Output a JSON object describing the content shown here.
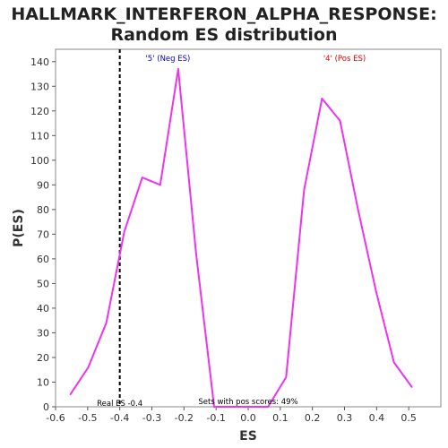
{
  "chart_data": {
    "type": "line",
    "title_lines": [
      "HALLMARK_INTERFERON_ALPHA_RESPONSE:",
      "Random ES distribution"
    ],
    "xlabel": "ES",
    "ylabel": "P(ES)",
    "xlim": [
      -0.6,
      0.6
    ],
    "ylim": [
      0,
      145
    ],
    "xticks": [
      "-0.6",
      "-0.5",
      "-0.4",
      "-0.3",
      "-0.2",
      "-0.1",
      "0.0",
      "0.1",
      "0.2",
      "0.3",
      "0.4",
      "0.5"
    ],
    "xtick_values": [
      -0.6,
      -0.5,
      -0.4,
      -0.3,
      -0.2,
      -0.1,
      0.0,
      0.1,
      0.2,
      0.3,
      0.4,
      0.5
    ],
    "yticks": [
      0,
      10,
      20,
      30,
      40,
      50,
      60,
      70,
      80,
      90,
      100,
      110,
      120,
      130,
      140
    ],
    "grid": false,
    "series": [
      {
        "color": "#ee33ee",
        "x": [
          -0.554,
          -0.498,
          -0.442,
          -0.386,
          -0.33,
          -0.274,
          -0.218,
          -0.162,
          -0.106,
          -0.05,
          0.006,
          0.062,
          0.118,
          0.174,
          0.23,
          0.286,
          0.342,
          0.398,
          0.454,
          0.51
        ],
        "y": [
          5,
          16,
          34,
          71,
          93,
          90,
          137,
          62,
          0,
          0,
          0,
          0,
          12,
          88,
          125,
          116,
          80,
          47,
          18,
          8
        ]
      }
    ],
    "real_es": {
      "value": -0.4,
      "label": "Real ES -0.4",
      "color": "#000000"
    },
    "annotations": {
      "neg": {
        "text": "'5' (Neg ES)",
        "color": "#0000cc"
      },
      "pos": {
        "text": "'4' (Pos ES)",
        "color": "#dd0000"
      },
      "pos_scores": {
        "text": "Sets with pos scores: 49%",
        "color": "#000000"
      }
    }
  }
}
